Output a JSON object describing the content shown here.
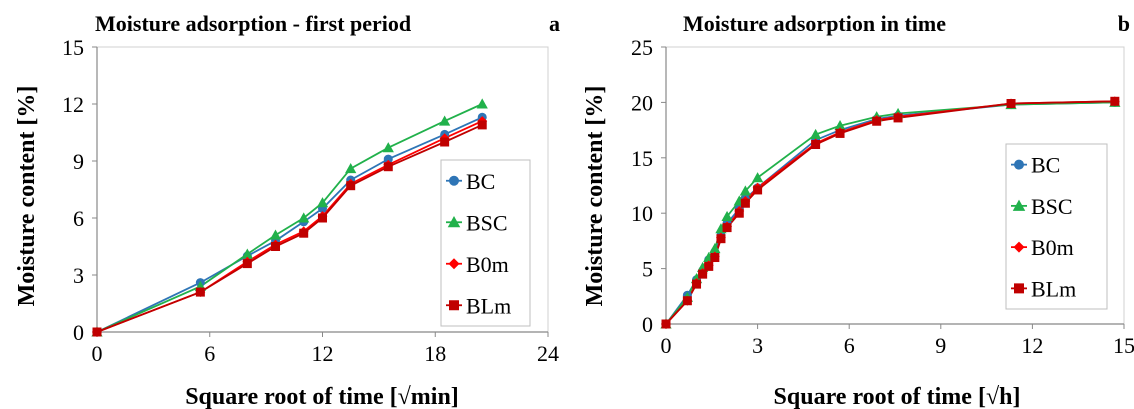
{
  "chart_data": [
    {
      "type": "line",
      "title": "Moisture adsorption - first period",
      "panel_label": "a",
      "xlabel": "Square root of time [√min]",
      "ylabel": "Moisture content [%]",
      "xlim": [
        0,
        24
      ],
      "ylim": [
        0,
        15
      ],
      "xticks": [
        "0",
        "6",
        "12",
        "18",
        "24"
      ],
      "yticks": [
        "0",
        "3",
        "6",
        "9",
        "12",
        "15"
      ],
      "grid": false,
      "legend_position": "bottom-right",
      "series": [
        {
          "name": "BC",
          "color": "#2e75b6",
          "marker": "circle",
          "x": [
            0,
            5.5,
            8.0,
            9.5,
            11.0,
            12.0,
            13.5,
            15.5,
            18.5,
            20.5
          ],
          "y": [
            0,
            2.6,
            4.0,
            4.8,
            5.8,
            6.5,
            8.0,
            9.1,
            10.4,
            11.3
          ]
        },
        {
          "name": "BSC",
          "color": "#21b14b",
          "marker": "triangle",
          "x": [
            0,
            5.5,
            8.0,
            9.5,
            11.0,
            12.0,
            13.5,
            15.5,
            18.5,
            20.5
          ],
          "y": [
            0,
            2.4,
            4.1,
            5.1,
            6.0,
            6.8,
            8.6,
            9.7,
            11.1,
            12.0
          ]
        },
        {
          "name": "B0m",
          "color": "#ff0000",
          "marker": "diamond",
          "x": [
            0,
            5.5,
            8.0,
            9.5,
            11.0,
            12.0,
            13.5,
            15.5,
            18.5,
            20.5
          ],
          "y": [
            0,
            2.1,
            3.7,
            4.6,
            5.3,
            6.1,
            7.8,
            8.8,
            10.2,
            11.1
          ]
        },
        {
          "name": "BLm",
          "color": "#c00000",
          "marker": "square",
          "x": [
            0,
            5.5,
            8.0,
            9.5,
            11.0,
            12.0,
            13.5,
            15.5,
            18.5,
            20.5
          ],
          "y": [
            0,
            2.1,
            3.6,
            4.5,
            5.2,
            6.0,
            7.7,
            8.7,
            10.0,
            10.9
          ]
        }
      ]
    },
    {
      "type": "line",
      "title": "Moisture adsorption in time",
      "panel_label": "b",
      "xlabel": "Square root of time [√h]",
      "ylabel": "Moisture content [%]",
      "xlim": [
        0,
        15
      ],
      "ylim": [
        0,
        25
      ],
      "xticks": [
        "0",
        "3",
        "6",
        "9",
        "12",
        "15"
      ],
      "yticks": [
        "0",
        "5",
        "10",
        "15",
        "20",
        "25"
      ],
      "grid": false,
      "legend_position": "center-right",
      "series": [
        {
          "name": "BC",
          "color": "#2e75b6",
          "marker": "circle",
          "x": [
            0,
            0.7,
            1.0,
            1.2,
            1.4,
            1.6,
            1.8,
            2.0,
            2.4,
            2.6,
            3.0,
            4.9,
            5.7,
            6.9,
            7.6,
            11.3,
            14.7
          ],
          "y": [
            0,
            2.6,
            4.0,
            4.8,
            5.8,
            6.5,
            8.0,
            9.1,
            10.4,
            11.3,
            12.3,
            16.6,
            17.5,
            18.5,
            18.8,
            19.8,
            20.0
          ]
        },
        {
          "name": "BSC",
          "color": "#21b14b",
          "marker": "triangle",
          "x": [
            0,
            0.7,
            1.0,
            1.2,
            1.4,
            1.6,
            1.8,
            2.0,
            2.4,
            2.6,
            3.0,
            4.9,
            5.7,
            6.9,
            7.6,
            11.3,
            14.7
          ],
          "y": [
            0,
            2.4,
            4.1,
            5.1,
            6.0,
            6.8,
            8.6,
            9.7,
            11.1,
            12.0,
            13.2,
            17.1,
            17.9,
            18.7,
            19.0,
            19.8,
            20.0
          ]
        },
        {
          "name": "B0m",
          "color": "#ff0000",
          "marker": "diamond",
          "x": [
            0,
            0.7,
            1.0,
            1.2,
            1.4,
            1.6,
            1.8,
            2.0,
            2.4,
            2.6,
            3.0,
            4.9,
            5.7,
            6.9,
            7.6,
            11.3,
            14.7
          ],
          "y": [
            0,
            2.1,
            3.7,
            4.6,
            5.3,
            6.1,
            7.8,
            8.8,
            10.2,
            11.1,
            12.3,
            16.3,
            17.3,
            18.4,
            18.7,
            19.9,
            20.1
          ]
        },
        {
          "name": "BLm",
          "color": "#c00000",
          "marker": "square",
          "x": [
            0,
            0.7,
            1.0,
            1.2,
            1.4,
            1.6,
            1.8,
            2.0,
            2.4,
            2.6,
            3.0,
            4.9,
            5.7,
            6.9,
            7.6,
            11.3,
            14.7
          ],
          "y": [
            0,
            2.1,
            3.6,
            4.5,
            5.2,
            6.0,
            7.7,
            8.7,
            10.0,
            10.9,
            12.1,
            16.2,
            17.2,
            18.3,
            18.6,
            19.9,
            20.1
          ]
        }
      ]
    }
  ]
}
